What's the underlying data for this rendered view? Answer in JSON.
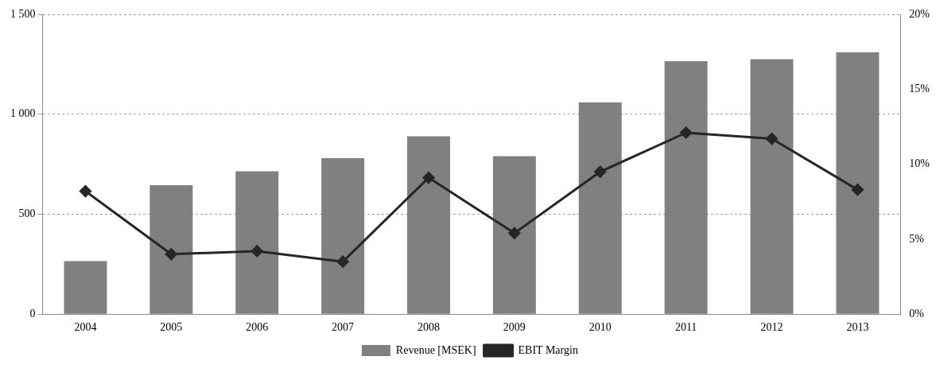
{
  "chart_data": {
    "type": "bar",
    "categories": [
      "2004",
      "2005",
      "2006",
      "2007",
      "2008",
      "2009",
      "2010",
      "2011",
      "2012",
      "2013"
    ],
    "series": [
      {
        "name": "Revenue [MSEK]",
        "color": "#808080",
        "values": [
          265,
          645,
          715,
          780,
          890,
          790,
          1060,
          1265,
          1275,
          1310
        ]
      },
      {
        "name": "EBIT Margin",
        "type": "line",
        "axis": "y2",
        "color": "#262626",
        "marker": "diamond",
        "line_style": "solid",
        "values": [
          8.2,
          4.0,
          4.2,
          3.5,
          9.1,
          5.4,
          9.5,
          12.1,
          11.7,
          8.3
        ]
      }
    ],
    "ylim": [
      0,
      1500
    ],
    "yticks": [
      {
        "value": 0,
        "label": "0"
      },
      {
        "value": 500,
        "label": "500"
      },
      {
        "value": 1000,
        "label": "1 000"
      },
      {
        "value": 1500,
        "label": "1 500"
      }
    ],
    "y2lim": [
      0,
      20
    ],
    "y2ticks": [
      {
        "value": 0,
        "label": "0%"
      },
      {
        "value": 5,
        "label": "5%"
      },
      {
        "value": 10,
        "label": "10%"
      },
      {
        "value": 15,
        "label": "15%"
      },
      {
        "value": 20,
        "label": "20%"
      }
    ],
    "grid": "y",
    "legend": "bottom"
  }
}
